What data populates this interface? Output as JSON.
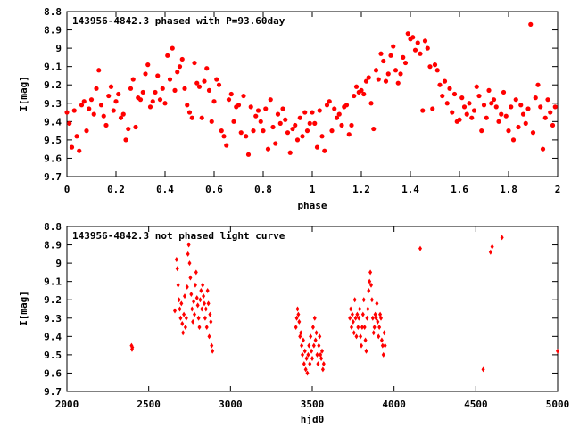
{
  "colors": {
    "points": "#ff0000",
    "axes": "#000000",
    "background": "#ffffff"
  },
  "chart_data": [
    {
      "type": "scatter",
      "title": "143956-4842.3 phased with P=93.60day",
      "xlabel": "phase",
      "ylabel": "I[mag]",
      "xlim": [
        0,
        2
      ],
      "ylim": [
        8.8,
        9.7
      ],
      "y_inverted": true,
      "grid": false,
      "xticks": [
        "0",
        "0.2",
        "0.4",
        "0.6",
        "0.8",
        "1",
        "1.2",
        "1.4",
        "1.6",
        "1.8",
        "2"
      ],
      "yticks": [
        "8.8",
        "8.9",
        "9",
        "9.1",
        "9.2",
        "9.3",
        "9.4",
        "9.5",
        "9.6",
        "9.7"
      ],
      "marker": "circle",
      "points": [
        [
          0.0,
          9.35
        ],
        [
          0.01,
          9.41
        ],
        [
          0.02,
          9.54
        ],
        [
          0.03,
          9.34
        ],
        [
          0.04,
          9.48
        ],
        [
          0.05,
          9.56
        ],
        [
          0.06,
          9.31
        ],
        [
          0.07,
          9.29
        ],
        [
          0.08,
          9.45
        ],
        [
          0.09,
          9.33
        ],
        [
          0.1,
          9.28
        ],
        [
          0.11,
          9.36
        ],
        [
          0.12,
          9.22
        ],
        [
          0.13,
          9.12
        ],
        [
          0.14,
          9.31
        ],
        [
          0.15,
          9.37
        ],
        [
          0.16,
          9.42
        ],
        [
          0.17,
          9.26
        ],
        [
          0.18,
          9.21
        ],
        [
          0.19,
          9.34
        ],
        [
          0.2,
          9.29
        ],
        [
          0.21,
          9.25
        ],
        [
          0.22,
          9.38
        ],
        [
          0.23,
          9.36
        ],
        [
          0.24,
          9.5
        ],
        [
          0.25,
          9.44
        ],
        [
          0.26,
          9.22
        ],
        [
          0.27,
          9.17
        ],
        [
          0.28,
          9.43
        ],
        [
          0.29,
          9.27
        ],
        [
          0.3,
          9.28
        ],
        [
          0.31,
          9.24
        ],
        [
          0.32,
          9.14
        ],
        [
          0.33,
          9.09
        ],
        [
          0.34,
          9.32
        ],
        [
          0.35,
          9.29
        ],
        [
          0.36,
          9.24
        ],
        [
          0.37,
          9.15
        ],
        [
          0.38,
          9.28
        ],
        [
          0.39,
          9.22
        ],
        [
          0.4,
          9.3
        ],
        [
          0.41,
          9.04
        ],
        [
          0.42,
          9.17
        ],
        [
          0.43,
          9.0
        ],
        [
          0.44,
          9.23
        ],
        [
          0.45,
          9.13
        ],
        [
          0.46,
          9.1
        ],
        [
          0.47,
          9.06
        ],
        [
          0.48,
          9.22
        ],
        [
          0.49,
          9.31
        ],
        [
          0.5,
          9.35
        ],
        [
          0.51,
          9.38
        ],
        [
          0.52,
          9.08
        ],
        [
          0.53,
          9.19
        ],
        [
          0.54,
          9.21
        ],
        [
          0.55,
          9.38
        ],
        [
          0.56,
          9.18
        ],
        [
          0.57,
          9.11
        ],
        [
          0.58,
          9.23
        ],
        [
          0.59,
          9.4
        ],
        [
          0.6,
          9.29
        ],
        [
          0.61,
          9.17
        ],
        [
          0.62,
          9.2
        ],
        [
          0.63,
          9.45
        ],
        [
          0.64,
          9.48
        ],
        [
          0.65,
          9.53
        ],
        [
          0.66,
          9.28
        ],
        [
          0.67,
          9.25
        ],
        [
          0.68,
          9.4
        ],
        [
          0.69,
          9.32
        ],
        [
          0.7,
          9.31
        ],
        [
          0.71,
          9.46
        ],
        [
          0.72,
          9.26
        ],
        [
          0.73,
          9.48
        ],
        [
          0.74,
          9.58
        ],
        [
          0.75,
          9.32
        ],
        [
          0.76,
          9.45
        ],
        [
          0.77,
          9.37
        ],
        [
          0.78,
          9.34
        ],
        [
          0.79,
          9.4
        ],
        [
          0.8,
          9.45
        ],
        [
          0.81,
          9.33
        ],
        [
          0.82,
          9.55
        ],
        [
          0.83,
          9.28
        ],
        [
          0.84,
          9.43
        ],
        [
          0.85,
          9.52
        ],
        [
          0.86,
          9.36
        ],
        [
          0.87,
          9.41
        ],
        [
          0.88,
          9.33
        ],
        [
          0.89,
          9.39
        ],
        [
          0.9,
          9.46
        ],
        [
          0.91,
          9.57
        ],
        [
          0.92,
          9.44
        ],
        [
          0.93,
          9.42
        ],
        [
          0.94,
          9.5
        ],
        [
          0.95,
          9.38
        ],
        [
          0.96,
          9.48
        ],
        [
          0.97,
          9.35
        ],
        [
          0.98,
          9.45
        ],
        [
          0.99,
          9.41
        ],
        [
          1.0,
          9.35
        ],
        [
          1.01,
          9.41
        ],
        [
          1.02,
          9.54
        ],
        [
          1.03,
          9.34
        ],
        [
          1.04,
          9.48
        ],
        [
          1.05,
          9.56
        ],
        [
          1.06,
          9.31
        ],
        [
          1.07,
          9.29
        ],
        [
          1.08,
          9.45
        ],
        [
          1.09,
          9.33
        ],
        [
          1.1,
          9.38
        ],
        [
          1.11,
          9.36
        ],
        [
          1.12,
          9.42
        ],
        [
          1.13,
          9.32
        ],
        [
          1.14,
          9.31
        ],
        [
          1.15,
          9.47
        ],
        [
          1.16,
          9.42
        ],
        [
          1.17,
          9.26
        ],
        [
          1.18,
          9.21
        ],
        [
          1.19,
          9.24
        ],
        [
          1.2,
          9.23
        ],
        [
          1.21,
          9.25
        ],
        [
          1.22,
          9.18
        ],
        [
          1.23,
          9.16
        ],
        [
          1.24,
          9.3
        ],
        [
          1.25,
          9.44
        ],
        [
          1.26,
          9.12
        ],
        [
          1.27,
          9.17
        ],
        [
          1.28,
          9.03
        ],
        [
          1.29,
          9.07
        ],
        [
          1.3,
          9.18
        ],
        [
          1.31,
          9.14
        ],
        [
          1.32,
          9.04
        ],
        [
          1.33,
          8.99
        ],
        [
          1.34,
          9.12
        ],
        [
          1.35,
          9.19
        ],
        [
          1.36,
          9.14
        ],
        [
          1.37,
          9.05
        ],
        [
          1.38,
          9.08
        ],
        [
          1.39,
          8.92
        ],
        [
          1.4,
          8.95
        ],
        [
          1.41,
          8.94
        ],
        [
          1.42,
          9.01
        ],
        [
          1.43,
          8.97
        ],
        [
          1.44,
          9.03
        ],
        [
          1.45,
          9.34
        ],
        [
          1.46,
          8.96
        ],
        [
          1.47,
          9.0
        ],
        [
          1.48,
          9.1
        ],
        [
          1.49,
          9.33
        ],
        [
          1.5,
          9.09
        ],
        [
          1.51,
          9.12
        ],
        [
          1.52,
          9.2
        ],
        [
          1.53,
          9.26
        ],
        [
          1.54,
          9.18
        ],
        [
          1.55,
          9.3
        ],
        [
          1.56,
          9.22
        ],
        [
          1.57,
          9.35
        ],
        [
          1.58,
          9.25
        ],
        [
          1.59,
          9.4
        ],
        [
          1.6,
          9.39
        ],
        [
          1.61,
          9.27
        ],
        [
          1.62,
          9.32
        ],
        [
          1.63,
          9.36
        ],
        [
          1.64,
          9.3
        ],
        [
          1.65,
          9.38
        ],
        [
          1.66,
          9.34
        ],
        [
          1.67,
          9.21
        ],
        [
          1.68,
          9.26
        ],
        [
          1.69,
          9.45
        ],
        [
          1.7,
          9.31
        ],
        [
          1.71,
          9.38
        ],
        [
          1.72,
          9.23
        ],
        [
          1.73,
          9.3
        ],
        [
          1.74,
          9.28
        ],
        [
          1.75,
          9.32
        ],
        [
          1.76,
          9.4
        ],
        [
          1.77,
          9.36
        ],
        [
          1.78,
          9.24
        ],
        [
          1.79,
          9.37
        ],
        [
          1.8,
          9.45
        ],
        [
          1.81,
          9.32
        ],
        [
          1.82,
          9.5
        ],
        [
          1.83,
          9.28
        ],
        [
          1.84,
          9.43
        ],
        [
          1.85,
          9.31
        ],
        [
          1.86,
          9.36
        ],
        [
          1.87,
          9.41
        ],
        [
          1.88,
          9.33
        ],
        [
          1.89,
          8.87
        ],
        [
          1.9,
          9.46
        ],
        [
          1.91,
          9.27
        ],
        [
          1.92,
          9.2
        ],
        [
          1.93,
          9.32
        ],
        [
          1.94,
          9.55
        ],
        [
          1.95,
          9.38
        ],
        [
          1.96,
          9.28
        ],
        [
          1.97,
          9.35
        ],
        [
          1.98,
          9.42
        ],
        [
          1.99,
          9.32
        ]
      ]
    },
    {
      "type": "scatter",
      "title": "143956-4842.3 not phased light curve",
      "xlabel": "hjd0",
      "ylabel": "I[mag]",
      "xlim": [
        2000,
        5000
      ],
      "ylim": [
        8.8,
        9.7
      ],
      "y_inverted": true,
      "grid": false,
      "xticks": [
        "2000",
        "2500",
        "3000",
        "3500",
        "4000",
        "4500",
        "5000"
      ],
      "yticks": [
        "8.8",
        "8.9",
        "9",
        "9.1",
        "9.2",
        "9.3",
        "9.4",
        "9.5",
        "9.6",
        "9.7"
      ],
      "marker": "diamond",
      "points": [
        [
          2395,
          9.45
        ],
        [
          2398,
          9.47
        ],
        [
          2400,
          9.46
        ],
        [
          2660,
          9.26
        ],
        [
          2670,
          8.98
        ],
        [
          2675,
          9.03
        ],
        [
          2680,
          9.12
        ],
        [
          2685,
          9.2
        ],
        [
          2690,
          9.25
        ],
        [
          2695,
          9.3
        ],
        [
          2700,
          9.22
        ],
        [
          2705,
          9.33
        ],
        [
          2710,
          9.38
        ],
        [
          2715,
          9.28
        ],
        [
          2720,
          9.18
        ],
        [
          2725,
          9.35
        ],
        [
          2730,
          9.3
        ],
        [
          2735,
          9.13
        ],
        [
          2740,
          8.95
        ],
        [
          2745,
          8.9
        ],
        [
          2750,
          9.0
        ],
        [
          2755,
          9.08
        ],
        [
          2760,
          9.17
        ],
        [
          2765,
          9.25
        ],
        [
          2770,
          9.32
        ],
        [
          2775,
          9.21
        ],
        [
          2780,
          9.28
        ],
        [
          2785,
          9.12
        ],
        [
          2790,
          9.05
        ],
        [
          2795,
          9.19
        ],
        [
          2800,
          9.23
        ],
        [
          2805,
          9.3
        ],
        [
          2810,
          9.35
        ],
        [
          2815,
          9.2
        ],
        [
          2820,
          9.15
        ],
        [
          2825,
          9.25
        ],
        [
          2830,
          9.12
        ],
        [
          2835,
          9.18
        ],
        [
          2840,
          9.22
        ],
        [
          2845,
          9.3
        ],
        [
          2850,
          9.25
        ],
        [
          2855,
          9.35
        ],
        [
          2860,
          9.15
        ],
        [
          2865,
          9.22
        ],
        [
          2870,
          9.4
        ],
        [
          2875,
          9.28
        ],
        [
          2880,
          9.32
        ],
        [
          2885,
          9.45
        ],
        [
          2890,
          9.48
        ],
        [
          3400,
          9.35
        ],
        [
          3405,
          9.3
        ],
        [
          3410,
          9.25
        ],
        [
          3415,
          9.28
        ],
        [
          3420,
          9.32
        ],
        [
          3425,
          9.4
        ],
        [
          3430,
          9.38
        ],
        [
          3435,
          9.45
        ],
        [
          3440,
          9.5
        ],
        [
          3445,
          9.42
        ],
        [
          3450,
          9.55
        ],
        [
          3455,
          9.48
        ],
        [
          3460,
          9.58
        ],
        [
          3465,
          9.52
        ],
        [
          3470,
          9.6
        ],
        [
          3475,
          9.5
        ],
        [
          3480,
          9.45
        ],
        [
          3485,
          9.55
        ],
        [
          3490,
          9.4
        ],
        [
          3495,
          9.48
        ],
        [
          3500,
          9.52
        ],
        [
          3505,
          9.35
        ],
        [
          3510,
          9.45
        ],
        [
          3515,
          9.3
        ],
        [
          3520,
          9.42
        ],
        [
          3525,
          9.38
        ],
        [
          3530,
          9.5
        ],
        [
          3535,
          9.55
        ],
        [
          3540,
          9.45
        ],
        [
          3545,
          9.4
        ],
        [
          3550,
          9.5
        ],
        [
          3555,
          9.52
        ],
        [
          3560,
          9.48
        ],
        [
          3565,
          9.58
        ],
        [
          3570,
          9.55
        ],
        [
          3730,
          9.3
        ],
        [
          3735,
          9.25
        ],
        [
          3740,
          9.35
        ],
        [
          3745,
          9.28
        ],
        [
          3750,
          9.32
        ],
        [
          3755,
          9.38
        ],
        [
          3760,
          9.2
        ],
        [
          3765,
          9.3
        ],
        [
          3770,
          9.4
        ],
        [
          3775,
          9.28
        ],
        [
          3780,
          9.35
        ],
        [
          3785,
          9.3
        ],
        [
          3790,
          9.25
        ],
        [
          3795,
          9.4
        ],
        [
          3800,
          9.45
        ],
        [
          3805,
          9.35
        ],
        [
          3810,
          9.28
        ],
        [
          3815,
          9.2
        ],
        [
          3820,
          9.35
        ],
        [
          3825,
          9.42
        ],
        [
          3830,
          9.48
        ],
        [
          3835,
          9.3
        ],
        [
          3840,
          9.25
        ],
        [
          3845,
          9.15
        ],
        [
          3850,
          9.1
        ],
        [
          3855,
          9.05
        ],
        [
          3860,
          9.12
        ],
        [
          3865,
          9.2
        ],
        [
          3870,
          9.3
        ],
        [
          3875,
          9.38
        ],
        [
          3880,
          9.35
        ],
        [
          3885,
          9.28
        ],
        [
          3890,
          9.3
        ],
        [
          3895,
          9.22
        ],
        [
          3900,
          9.32
        ],
        [
          3905,
          9.4
        ],
        [
          3910,
          9.35
        ],
        [
          3915,
          9.28
        ],
        [
          3920,
          9.3
        ],
        [
          3925,
          9.42
        ],
        [
          3930,
          9.45
        ],
        [
          3935,
          9.5
        ],
        [
          3940,
          9.38
        ],
        [
          3945,
          9.45
        ],
        [
          4160,
          8.92
        ],
        [
          4545,
          9.58
        ],
        [
          4590,
          8.94
        ],
        [
          4600,
          8.91
        ],
        [
          4660,
          8.86
        ],
        [
          5000,
          9.48
        ]
      ]
    }
  ]
}
